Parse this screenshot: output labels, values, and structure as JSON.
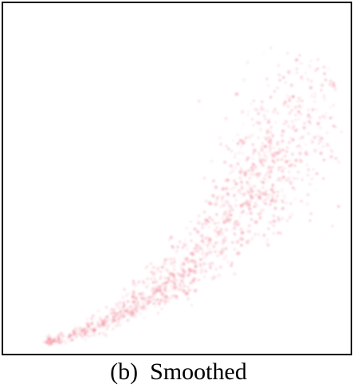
{
  "caption": "(b)  Smoothed",
  "chart_data": {
    "type": "scatter",
    "title": "",
    "xlabel": "",
    "ylabel": "",
    "xlim": [
      0,
      1
    ],
    "ylim": [
      0,
      1
    ],
    "grid": false,
    "legend": "none",
    "point_color": "#f08a9c",
    "background_color": "#ffffff",
    "frame_color": "#000000",
    "series": [
      {
        "density_curve": {
          "x": [
            0.12,
            0.2,
            0.3,
            0.4,
            0.5,
            0.6,
            0.7,
            0.75,
            0.8,
            0.85,
            0.88,
            0.91
          ],
          "y": [
            0.03,
            0.05,
            0.09,
            0.15,
            0.22,
            0.32,
            0.44,
            0.52,
            0.6,
            0.69,
            0.75,
            0.82
          ],
          "spread": [
            0.005,
            0.01,
            0.015,
            0.025,
            0.035,
            0.045,
            0.06,
            0.07,
            0.08,
            0.08,
            0.07,
            0.06
          ],
          "density": [
            0.3,
            0.4,
            0.55,
            0.75,
            0.9,
            1.0,
            1.0,
            0.9,
            0.75,
            0.5,
            0.3,
            0.15
          ]
        }
      }
    ]
  }
}
